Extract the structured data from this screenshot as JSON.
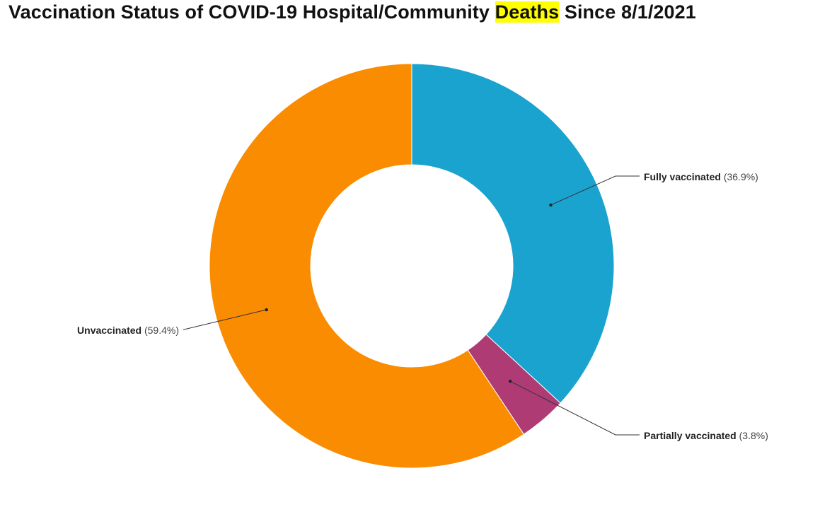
{
  "title": {
    "prefix": "Vaccination Status of COVID-19 Hospital/Community ",
    "highlight": "Deaths",
    "suffix": " Since 8/1/2021",
    "highlight_color": "#ffff00"
  },
  "chart_data": {
    "type": "pie",
    "subtype": "donut",
    "title": "Vaccination Status of COVID-19 Hospital/Community Deaths Since 8/1/2021",
    "slices": [
      {
        "name": "Fully vaccinated",
        "value": 36.9,
        "pct_label": "(36.9%)",
        "color": "#1ba3d0"
      },
      {
        "name": "Partially vaccinated",
        "value": 3.8,
        "pct_label": "(3.8%)",
        "color": "#ae3b74"
      },
      {
        "name": "Unvaccinated",
        "value": 59.4,
        "pct_label": "(59.4%)",
        "color": "#f98c00"
      }
    ],
    "start_angle": "12 o'clock",
    "direction": "clockwise",
    "legend": "none (external leader labels)"
  }
}
